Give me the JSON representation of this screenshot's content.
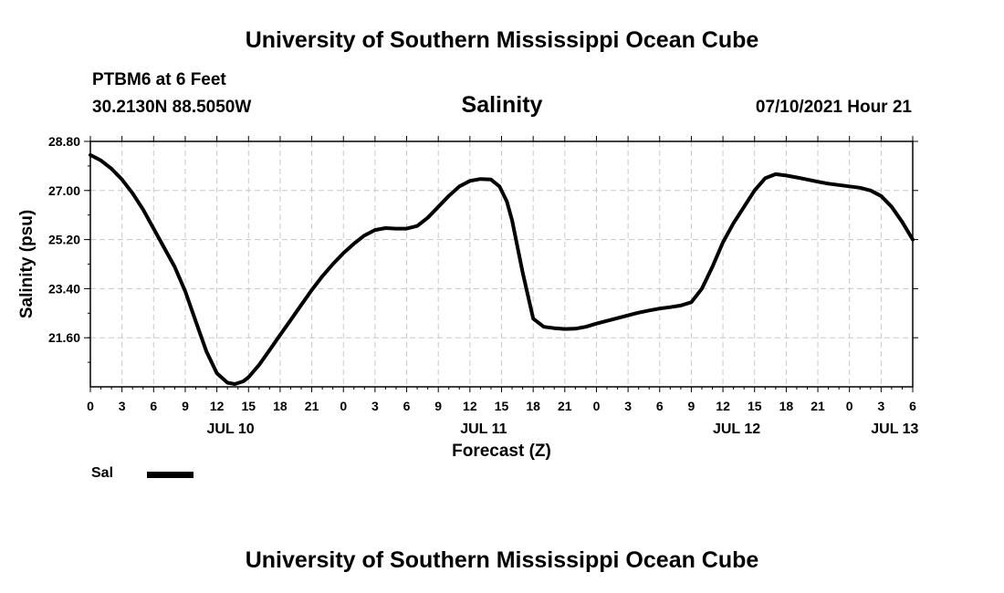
{
  "header": {
    "title": "University of Southern Mississippi Ocean Cube",
    "station": "PTBM6 at 6 Feet",
    "coords": "30.2130N  88.5050W",
    "run_time": "07/10/2021 Hour 21"
  },
  "footer": {
    "title": "University of Southern Mississippi Ocean Cube"
  },
  "legend": {
    "label": "Sal"
  },
  "chart_data": {
    "type": "line",
    "title": "Salinity",
    "xlabel": "Forecast (Z)",
    "ylabel": "Salinity (psu)",
    "x_unit": "hours since 2021-07-10 00Z",
    "xlim": [
      0,
      78
    ],
    "ylim": [
      19.8,
      28.8
    ],
    "grid": true,
    "line_color": "#000000",
    "y_ticks": [
      {
        "value": 21.6,
        "label": "21.60"
      },
      {
        "value": 23.4,
        "label": "23.40"
      },
      {
        "value": 25.2,
        "label": "25.20"
      },
      {
        "value": 27.0,
        "label": "27.00"
      },
      {
        "value": 28.8,
        "label": "28.80"
      }
    ],
    "x_ticks": [
      {
        "value": 0,
        "label": "0"
      },
      {
        "value": 3,
        "label": "3"
      },
      {
        "value": 6,
        "label": "6"
      },
      {
        "value": 9,
        "label": "9"
      },
      {
        "value": 12,
        "label": "12"
      },
      {
        "value": 15,
        "label": "15"
      },
      {
        "value": 18,
        "label": "18"
      },
      {
        "value": 21,
        "label": "21"
      },
      {
        "value": 24,
        "label": "0"
      },
      {
        "value": 27,
        "label": "3"
      },
      {
        "value": 30,
        "label": "6"
      },
      {
        "value": 33,
        "label": "9"
      },
      {
        "value": 36,
        "label": "12"
      },
      {
        "value": 39,
        "label": "15"
      },
      {
        "value": 42,
        "label": "18"
      },
      {
        "value": 45,
        "label": "21"
      },
      {
        "value": 48,
        "label": "0"
      },
      {
        "value": 51,
        "label": "3"
      },
      {
        "value": 54,
        "label": "6"
      },
      {
        "value": 57,
        "label": "9"
      },
      {
        "value": 60,
        "label": "12"
      },
      {
        "value": 63,
        "label": "15"
      },
      {
        "value": 66,
        "label": "18"
      },
      {
        "value": 69,
        "label": "21"
      },
      {
        "value": 72,
        "label": "0"
      },
      {
        "value": 75,
        "label": "3"
      },
      {
        "value": 78,
        "label": "6"
      }
    ],
    "date_labels": [
      {
        "value": 12,
        "label": "JUL 10"
      },
      {
        "value": 36,
        "label": "JUL 11"
      },
      {
        "value": 60,
        "label": "JUL 12"
      },
      {
        "value": 75,
        "label": "JUL 13"
      }
    ],
    "series": [
      {
        "name": "Sal",
        "x": [
          0,
          1,
          2,
          3,
          4,
          5,
          6,
          7,
          8,
          9,
          10,
          11,
          12,
          13,
          13.7,
          14.5,
          15,
          16,
          17,
          18,
          19,
          20,
          21,
          22,
          23,
          24,
          25,
          26,
          27,
          28,
          29,
          30,
          31,
          32,
          33,
          34,
          35,
          36,
          37,
          38,
          38.8,
          39.5,
          40,
          41,
          42,
          43,
          44,
          45,
          46,
          47,
          48,
          49,
          50,
          51,
          52,
          53,
          54,
          55,
          56,
          57,
          58,
          59,
          60,
          61,
          62,
          63,
          64,
          65,
          66,
          67,
          68,
          69,
          70,
          71,
          72,
          73,
          74,
          75,
          76,
          77,
          78
        ],
        "values": [
          28.3,
          28.1,
          27.8,
          27.4,
          26.9,
          26.3,
          25.6,
          24.9,
          24.2,
          23.3,
          22.2,
          21.1,
          20.3,
          19.95,
          19.9,
          20.0,
          20.15,
          20.6,
          21.15,
          21.7,
          22.25,
          22.8,
          23.35,
          23.85,
          24.3,
          24.7,
          25.05,
          25.35,
          25.55,
          25.62,
          25.6,
          25.6,
          25.7,
          26.0,
          26.4,
          26.8,
          27.15,
          27.35,
          27.42,
          27.4,
          27.15,
          26.6,
          25.9,
          24.0,
          22.3,
          22.0,
          21.95,
          21.92,
          21.93,
          22.0,
          22.12,
          22.22,
          22.32,
          22.42,
          22.52,
          22.6,
          22.67,
          22.72,
          22.78,
          22.9,
          23.4,
          24.2,
          25.1,
          25.8,
          26.4,
          27.0,
          27.45,
          27.6,
          27.55,
          27.48,
          27.4,
          27.32,
          27.25,
          27.2,
          27.15,
          27.1,
          27.0,
          26.8,
          26.4,
          25.85,
          25.2
        ]
      }
    ]
  }
}
